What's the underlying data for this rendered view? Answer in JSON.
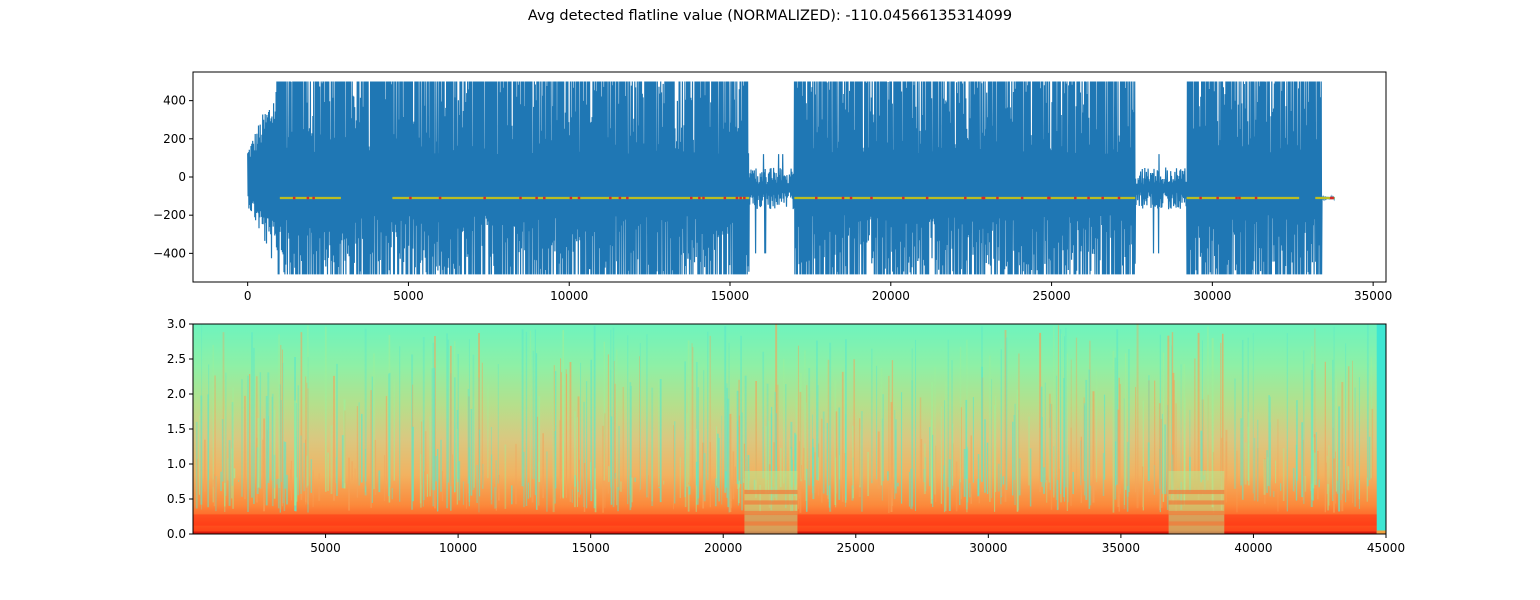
{
  "figure": {
    "title": "Avg detected flatline value (NORMALIZED): -110.04566135314099"
  },
  "chart_data": [
    {
      "type": "line",
      "title": "",
      "xlabel": "",
      "ylabel": "",
      "xlim": [
        -1700,
        35400
      ],
      "ylim": [
        -550,
        550
      ],
      "xticks": [
        0,
        5000,
        10000,
        15000,
        20000,
        25000,
        30000,
        35000
      ],
      "yticks": [
        -400,
        -200,
        0,
        200,
        400
      ],
      "signal_color": "#1f77b4",
      "flatline_color": "#bcbd22",
      "flatline_marker_color": "#d62728",
      "flatline_value": -110.04566135314099,
      "clip_high": 500,
      "clip_low": -510,
      "activity_segments": [
        {
          "x": [
            0,
            900
          ],
          "level": "rise"
        },
        {
          "x": [
            900,
            15600
          ],
          "level": "saturated"
        },
        {
          "x": [
            15600,
            17000
          ],
          "level": "quiet"
        },
        {
          "x": [
            17000,
            27600
          ],
          "level": "saturated"
        },
        {
          "x": [
            27600,
            29200
          ],
          "level": "quiet"
        },
        {
          "x": [
            29200,
            33400
          ],
          "level": "saturated"
        },
        {
          "x": [
            33400,
            33800
          ],
          "level": "flat"
        }
      ],
      "flatline_segments": [
        [
          1000,
          2900
        ],
        [
          4500,
          15600
        ],
        [
          17000,
          27600
        ],
        [
          29200,
          32700
        ],
        [
          33200,
          33800
        ]
      ]
    },
    {
      "type": "heatmap",
      "title": "",
      "xlabel": "",
      "ylabel": "",
      "colormap": "rainbow",
      "xlim": [
        0,
        45000
      ],
      "ylim": [
        0,
        3.0
      ],
      "xticks": [
        5000,
        10000,
        15000,
        20000,
        25000,
        30000,
        35000,
        40000,
        45000
      ],
      "yticks": [
        0.0,
        0.5,
        1.0,
        1.5,
        2.0,
        2.5,
        3.0
      ],
      "banded_regions": [
        [
          20800,
          22800
        ],
        [
          36800,
          38900
        ]
      ],
      "strong_low_band": 0.2
    }
  ]
}
